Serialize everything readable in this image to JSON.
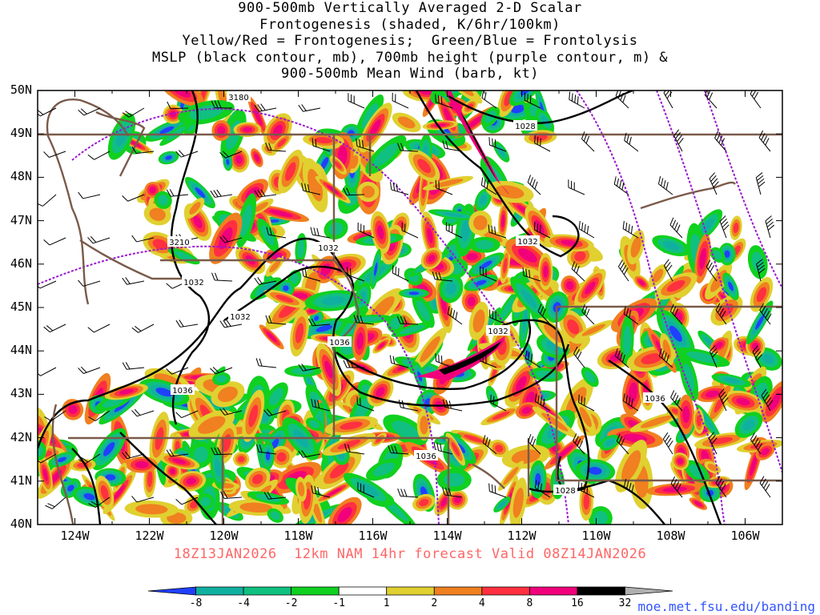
{
  "title": {
    "lines": [
      "900-500mb Vertically Averaged 2-D Scalar",
      "Frontogenesis (shaded, K/6hr/100km)",
      "Yellow/Red = Frontogenesis;  Green/Blue = Frontolysis",
      "MSLP (black contour, mb), 700mb height (purple contour, m) &",
      "900-500mb Mean Wind (barb, kt)"
    ]
  },
  "map": {
    "lat_range": [
      40,
      50
    ],
    "lon_range": [
      -125,
      -105
    ],
    "lat_labels": [
      "50N",
      "49N",
      "48N",
      "47N",
      "46N",
      "45N",
      "44N",
      "43N",
      "42N",
      "41N",
      "40N"
    ],
    "lon_labels": [
      "124W",
      "122W",
      "120W",
      "118W",
      "116W",
      "114W",
      "112W",
      "110W",
      "108W",
      "106W"
    ],
    "colors": {
      "frame": "#000000",
      "borders": "#7a5a4a",
      "mslp": "#000000",
      "height700": "#9a1ad0",
      "barb": "#000000"
    },
    "mslp_labels": [
      "1028",
      "1032",
      "1032",
      "1032",
      "1032",
      "1036",
      "1036",
      "1032",
      "1036",
      "1036",
      "1028"
    ],
    "height_labels": [
      "3180",
      "3210"
    ],
    "icons": [
      "wind-barb-icon"
    ]
  },
  "footer": {
    "valid_line": "18Z13JAN2026  12km NAM 14hr forecast Valid 08Z14JAN2026",
    "valid_color": "#ff6666",
    "url": "moe.met.fsu.edu/banding"
  },
  "colorbar": {
    "labels": [
      "-8",
      "-4",
      "-2",
      "-1",
      "1",
      "2",
      "4",
      "8",
      "16",
      "32"
    ],
    "colors": [
      "#2040ff",
      "#10b0a0",
      "#10c080",
      "#10d020",
      "#ffffff",
      "#e0d030",
      "#f08020",
      "#ff3040",
      "#f0007a",
      "#000000",
      "#b0b0b0"
    ]
  }
}
